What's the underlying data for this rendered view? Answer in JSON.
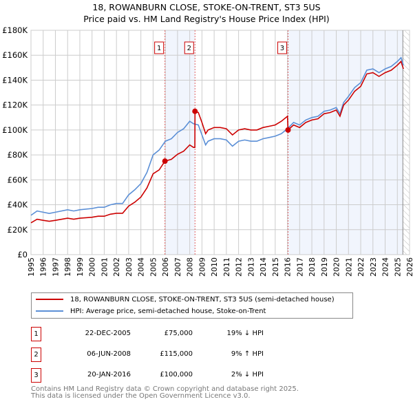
{
  "title": "18, ROWANBURN CLOSE, STOKE-ON-TRENT, ST3 5US",
  "subtitle": "Price paid vs. HM Land Registry's House Price Index (HPI)",
  "chart_data": {
    "type": "line",
    "title": "18, ROWANBURN CLOSE, STOKE-ON-TRENT, ST3 5US",
    "subtitle": "Price paid vs. HM Land Registry's House Price Index (HPI)",
    "xlim": [
      1995,
      2026
    ],
    "ylim": [
      0,
      180000
    ],
    "grid": true,
    "x_ticks": [
      "1995",
      "1996",
      "1997",
      "1998",
      "1999",
      "2000",
      "2001",
      "2002",
      "2003",
      "2004",
      "2005",
      "2006",
      "2007",
      "2008",
      "2009",
      "2010",
      "2011",
      "2012",
      "2013",
      "2014",
      "2015",
      "2016",
      "2017",
      "2018",
      "2019",
      "2020",
      "2021",
      "2022",
      "2023",
      "2024",
      "2025",
      "2026"
    ],
    "y_ticks": [
      {
        "v": 0,
        "label": "£0"
      },
      {
        "v": 20000,
        "label": "£20K"
      },
      {
        "v": 40000,
        "label": "£40K"
      },
      {
        "v": 60000,
        "label": "£60K"
      },
      {
        "v": 80000,
        "label": "£80K"
      },
      {
        "v": 100000,
        "label": "£100K"
      },
      {
        "v": 120000,
        "label": "£120K"
      },
      {
        "v": 140000,
        "label": "£140K"
      },
      {
        "v": 160000,
        "label": "£160K"
      },
      {
        "v": 180000,
        "label": "£180K"
      }
    ],
    "legend_placement": "below",
    "series": [
      {
        "name": "18, ROWANBURN CLOSE, STOKE-ON-TRENT, ST3 5US (semi-detached house)",
        "color": "#cc0000",
        "x": [
          1995,
          1995.5,
          1996,
          1996.5,
          1997,
          1998,
          1998.5,
          1999,
          2000,
          2000.5,
          2001,
          2001.5,
          2002,
          2002.5,
          2003,
          2003.5,
          2004,
          2004.5,
          2005,
          2005.5,
          2005.97,
          2006.5,
          2007,
          2007.5,
          2008,
          2008.3,
          2008.42,
          2008.43,
          2008.7,
          2009,
          2009.3,
          2009.5,
          2010,
          2010.5,
          2011,
          2011.5,
          2012,
          2012.5,
          2013,
          2013.5,
          2014,
          2014.5,
          2015,
          2015.5,
          2016.0,
          2016.05,
          2016.5,
          2017,
          2017.5,
          2018,
          2018.5,
          2019,
          2019.5,
          2020,
          2020.3,
          2020.6,
          2021,
          2021.5,
          2022,
          2022.5,
          2023,
          2023.5,
          2024,
          2024.5,
          2025,
          2025.3,
          2025.5
        ],
        "y": [
          25500,
          28400,
          27500,
          26700,
          27500,
          29200,
          28400,
          29200,
          30000,
          30800,
          30800,
          32400,
          33200,
          33200,
          38900,
          42100,
          46200,
          53500,
          64800,
          68000,
          75000,
          76500,
          80500,
          83000,
          88000,
          86000,
          86000,
          115000,
          114000,
          106000,
          97000,
          100000,
          102000,
          102000,
          101000,
          96000,
          100000,
          101000,
          100000,
          100000,
          102000,
          103000,
          104000,
          107000,
          111000,
          100000,
          104000,
          102000,
          106000,
          108000,
          109000,
          113000,
          114000,
          116000,
          111000,
          120000,
          124000,
          131000,
          135000,
          145000,
          146000,
          143000,
          146000,
          148000,
          152000,
          155000,
          149000
        ]
      },
      {
        "name": "HPI: Average price, semi-detached house, Stoke-on-Trent",
        "color": "#5b8fd6",
        "x": [
          1995,
          1995.5,
          1996,
          1996.5,
          1997,
          1998,
          1998.5,
          1999,
          2000,
          2000.5,
          2001,
          2001.5,
          2002,
          2002.5,
          2003,
          2003.5,
          2004,
          2004.5,
          2005,
          2005.5,
          2006,
          2006.5,
          2007,
          2007.5,
          2008,
          2008.3,
          2008.7,
          2009,
          2009.3,
          2009.5,
          2010,
          2010.5,
          2011,
          2011.5,
          2012,
          2012.5,
          2013,
          2013.5,
          2014,
          2014.5,
          2015,
          2015.5,
          2016,
          2016.5,
          2017,
          2017.5,
          2018,
          2018.5,
          2019,
          2019.5,
          2020,
          2020.3,
          2020.6,
          2021,
          2021.5,
          2022,
          2022.5,
          2023,
          2023.5,
          2024,
          2024.5,
          2025,
          2025.3,
          2025.5
        ],
        "y": [
          31500,
          35000,
          34000,
          33000,
          34000,
          36000,
          35000,
          36000,
          37000,
          38000,
          38000,
          40000,
          41000,
          41000,
          48000,
          52000,
          57000,
          66000,
          80000,
          84000,
          91000,
          93000,
          98000,
          101000,
          107000,
          105000,
          104000,
          96000,
          88000,
          91000,
          93000,
          93000,
          92000,
          87000,
          91000,
          92000,
          91000,
          91000,
          93000,
          94000,
          95000,
          97000,
          101000,
          106000,
          104000,
          108000,
          110000,
          111000,
          115000,
          116000,
          118000,
          113000,
          122000,
          127000,
          134000,
          138000,
          148000,
          149000,
          146000,
          149000,
          151000,
          155000,
          158000,
          152000
        ]
      }
    ],
    "shaded_ranges": [
      [
        2005.97,
        2008.43
      ],
      [
        2016.05,
        2025.45
      ]
    ],
    "hatched_range": [
      2025.45,
      2026
    ],
    "annotations": [
      {
        "label": "1",
        "x": 2005.97,
        "y": 75000
      },
      {
        "label": "2",
        "x": 2008.43,
        "y": 115000
      },
      {
        "label": "3",
        "x": 2016.05,
        "y": 100000
      }
    ]
  },
  "legend": {
    "property": "18, ROWANBURN CLOSE, STOKE-ON-TRENT, ST3 5US (semi-detached house)",
    "hpi": "HPI: Average price, semi-detached house, Stoke-on-Trent"
  },
  "sales": [
    {
      "num": "1",
      "date": "22-DEC-2005",
      "price": "£75,000",
      "hpi": "19% ↓ HPI"
    },
    {
      "num": "2",
      "date": "06-JUN-2008",
      "price": "£115,000",
      "hpi": "9% ↑ HPI"
    },
    {
      "num": "3",
      "date": "20-JAN-2016",
      "price": "£100,000",
      "hpi": "2% ↓ HPI"
    }
  ],
  "footer": {
    "line1": "Contains HM Land Registry data © Crown copyright and database right 2025.",
    "line2": "This data is licensed under the Open Government Licence v3.0."
  }
}
